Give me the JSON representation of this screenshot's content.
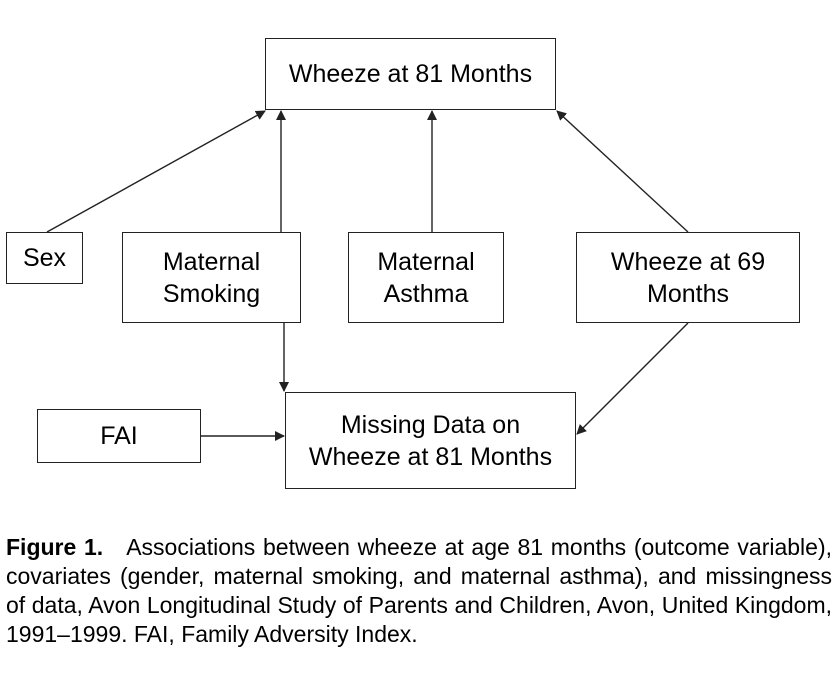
{
  "nodes": {
    "wheeze81": {
      "lines": [
        "Wheeze at 81 Months"
      ]
    },
    "sex": {
      "lines": [
        "Sex"
      ]
    },
    "maternal_smoking": {
      "lines": [
        "Maternal",
        "Smoking"
      ]
    },
    "maternal_asthma": {
      "lines": [
        "Maternal",
        "Asthma"
      ]
    },
    "wheeze69": {
      "lines": [
        "Wheeze at 69",
        "Months"
      ]
    },
    "fai": {
      "lines": [
        "FAI"
      ]
    },
    "missing": {
      "lines": [
        "Missing Data on",
        "Wheeze at 81 Months"
      ]
    }
  },
  "edges": [
    {
      "from": "sex",
      "to": "wheeze81"
    },
    {
      "from": "maternal_smoking",
      "to": "wheeze81"
    },
    {
      "from": "maternal_asthma",
      "to": "wheeze81"
    },
    {
      "from": "wheeze69",
      "to": "wheeze81"
    },
    {
      "from": "maternal_smoking",
      "to": "missing"
    },
    {
      "from": "fai",
      "to": "missing"
    },
    {
      "from": "wheeze69",
      "to": "missing"
    }
  ],
  "caption": {
    "label": "Figure 1.",
    "text": "Associations between wheeze at age 81 months (outcome variable), covariates (gender, maternal smoking, and maternal asthma), and missingness of data, Avon Longitudinal Study of Parents and Children, Avon, United Kingdom, 1991–1999. FAI, Family Adversity Index."
  }
}
